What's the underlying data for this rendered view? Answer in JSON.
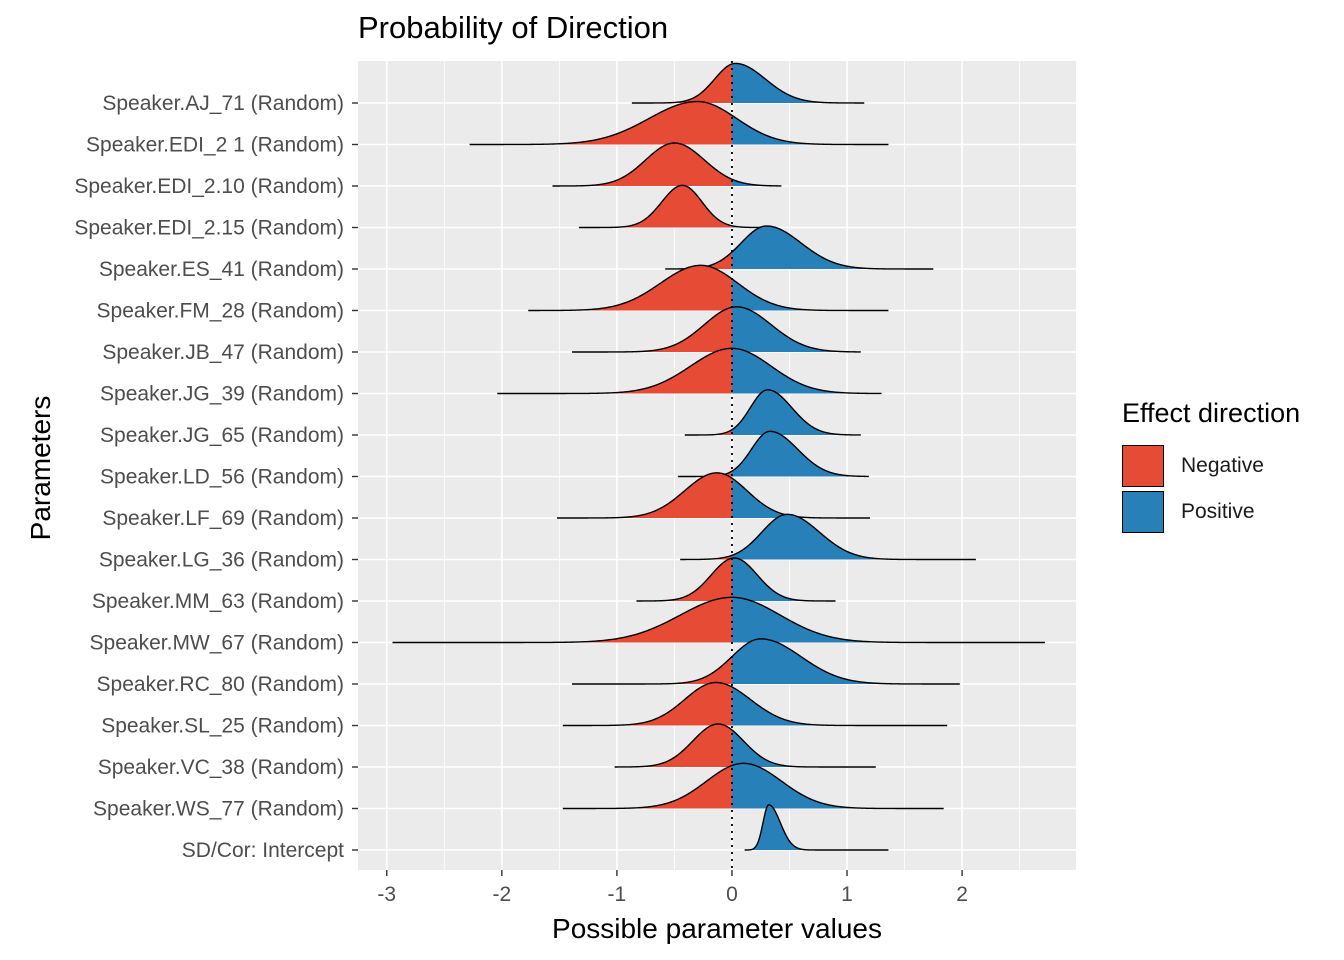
{
  "chart_data": {
    "type": "ridgeline",
    "title": "Probability of Direction",
    "xlabel": "Possible parameter values",
    "ylabel": "Parameters",
    "xlim": [
      -3.25,
      2.99
    ],
    "xticks": [
      -3,
      -2,
      -1,
      0,
      1,
      2
    ],
    "xtick_labels": [
      "-3",
      "-2",
      "-1",
      "0",
      "1",
      "2"
    ],
    "reference_line": 0,
    "grid": true,
    "legend": {
      "title": "Effect direction",
      "position": "right",
      "entries": [
        {
          "label": "Negative",
          "color": "#E64B35"
        },
        {
          "label": "Positive",
          "color": "#2880B9"
        }
      ]
    },
    "series": [
      {
        "name": "Speaker.AJ_71 (Random)",
        "mode": 0.03,
        "sd_left": 0.18,
        "sd_right": 0.26,
        "min": -0.87,
        "max": 1.15,
        "height": 0.92
      },
      {
        "name": "Speaker.EDI_2 1 (Random)",
        "mode": -0.3,
        "sd_left": 0.42,
        "sd_right": 0.34,
        "min": -2.28,
        "max": 1.36,
        "height": 1.0
      },
      {
        "name": "Speaker.EDI_2.10 (Random)",
        "mode": -0.5,
        "sd_left": 0.25,
        "sd_right": 0.26,
        "min": -1.56,
        "max": 0.43,
        "height": 1.0
      },
      {
        "name": "Speaker.EDI_2.15 (Random)",
        "mode": -0.43,
        "sd_left": 0.18,
        "sd_right": 0.17,
        "min": -1.33,
        "max": 0.38,
        "height": 0.98
      },
      {
        "name": "Speaker.ES_41 (Random)",
        "mode": 0.3,
        "sd_left": 0.22,
        "sd_right": 0.3,
        "min": -0.58,
        "max": 1.75,
        "height": 1.0
      },
      {
        "name": "Speaker.FM_28 (Random)",
        "mode": -0.27,
        "sd_left": 0.35,
        "sd_right": 0.32,
        "min": -1.77,
        "max": 1.36,
        "height": 1.05
      },
      {
        "name": "Speaker.JB_47 (Random)",
        "mode": 0.04,
        "sd_left": 0.28,
        "sd_right": 0.3,
        "min": -1.39,
        "max": 1.12,
        "height": 1.05
      },
      {
        "name": "Speaker.JG_39 (Random)",
        "mode": 0.0,
        "sd_left": 0.36,
        "sd_right": 0.34,
        "min": -2.04,
        "max": 1.3,
        "height": 1.05
      },
      {
        "name": "Speaker.JG_65 (Random)",
        "mode": 0.31,
        "sd_left": 0.15,
        "sd_right": 0.21,
        "min": -0.41,
        "max": 1.12,
        "height": 1.05
      },
      {
        "name": "Speaker.LD_56 (Random)",
        "mode": 0.33,
        "sd_left": 0.16,
        "sd_right": 0.24,
        "min": -0.47,
        "max": 1.19,
        "height": 1.05
      },
      {
        "name": "Speaker.LF_69 (Random)",
        "mode": -0.13,
        "sd_left": 0.28,
        "sd_right": 0.26,
        "min": -1.52,
        "max": 1.2,
        "height": 1.05
      },
      {
        "name": "Speaker.LG_36 (Random)",
        "mode": 0.48,
        "sd_left": 0.22,
        "sd_right": 0.28,
        "min": -0.45,
        "max": 2.12,
        "height": 1.05
      },
      {
        "name": "Speaker.MM_63 (Random)",
        "mode": 0.02,
        "sd_left": 0.2,
        "sd_right": 0.2,
        "min": -0.83,
        "max": 0.9,
        "height": 1.0
      },
      {
        "name": "Speaker.MW_67 (Random)",
        "mode": 0.0,
        "sd_left": 0.45,
        "sd_right": 0.42,
        "min": -2.95,
        "max": 2.72,
        "height": 1.05
      },
      {
        "name": "Speaker.RC_80 (Random)",
        "mode": 0.25,
        "sd_left": 0.25,
        "sd_right": 0.35,
        "min": -1.39,
        "max": 1.98,
        "height": 1.05
      },
      {
        "name": "Speaker.SL_25 (Random)",
        "mode": -0.14,
        "sd_left": 0.27,
        "sd_right": 0.3,
        "min": -1.47,
        "max": 1.87,
        "height": 1.0
      },
      {
        "name": "Speaker.VC_38 (Random)",
        "mode": -0.12,
        "sd_left": 0.22,
        "sd_right": 0.22,
        "min": -1.02,
        "max": 1.25,
        "height": 1.0
      },
      {
        "name": "Speaker.WS_77 (Random)",
        "mode": 0.1,
        "sd_left": 0.32,
        "sd_right": 0.33,
        "min": -1.47,
        "max": 1.84,
        "height": 1.05
      },
      {
        "name": "SD/Cor:  Intercept",
        "mode": 0.32,
        "sd_left": 0.05,
        "sd_right": 0.1,
        "min": 0.11,
        "max": 1.36,
        "height": 1.05
      }
    ]
  }
}
